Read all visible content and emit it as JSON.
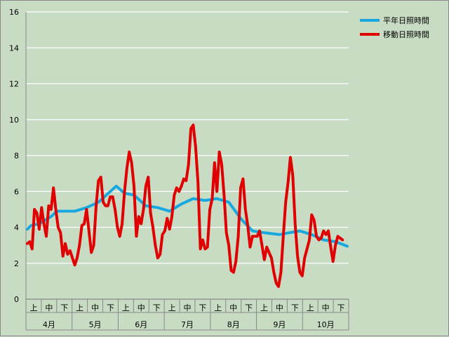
{
  "chart_data": {
    "type": "line",
    "title": "",
    "xlabel": "",
    "ylabel": "",
    "ylim": [
      0,
      16
    ],
    "yticks": [
      0,
      2,
      4,
      6,
      8,
      10,
      12,
      14,
      16
    ],
    "grid": true,
    "legend_position": "top-right",
    "months": [
      "4月",
      "5月",
      "6月",
      "7月",
      "8月",
      "9月",
      "10月"
    ],
    "periods": [
      "上",
      "中",
      "下"
    ],
    "x_count": 214,
    "series": [
      {
        "name": "平年日照時間",
        "color": "#18a8e0",
        "keypoints": [
          [
            0,
            3.9
          ],
          [
            3,
            4.1
          ],
          [
            10,
            4.2
          ],
          [
            20,
            4.6
          ],
          [
            25,
            4.9
          ],
          [
            40,
            4.9
          ],
          [
            50,
            5.1
          ],
          [
            60,
            5.4
          ],
          [
            70,
            6.0
          ],
          [
            75,
            6.3
          ],
          [
            82,
            5.9
          ],
          [
            90,
            5.8
          ],
          [
            100,
            5.2
          ],
          [
            110,
            5.1
          ],
          [
            120,
            4.9
          ],
          [
            130,
            5.3
          ],
          [
            140,
            5.6
          ],
          [
            150,
            5.5
          ],
          [
            160,
            5.6
          ],
          [
            170,
            5.4
          ],
          [
            180,
            4.5
          ],
          [
            190,
            3.8
          ],
          [
            200,
            3.7
          ],
          [
            213,
            3.6
          ],
          [
            221,
            3.7
          ],
          [
            230,
            3.8
          ],
          [
            240,
            3.6
          ],
          [
            250,
            3.3
          ],
          [
            260,
            3.2
          ],
          [
            270,
            2.95
          ]
        ]
      },
      {
        "name": "移動日照時間",
        "color": "#e00000",
        "keypoints": [
          [
            0,
            3.1
          ],
          [
            2,
            3.2
          ],
          [
            4,
            2.8
          ],
          [
            6,
            5.0
          ],
          [
            8,
            4.8
          ],
          [
            10,
            3.9
          ],
          [
            12,
            5.1
          ],
          [
            14,
            4.2
          ],
          [
            16,
            3.5
          ],
          [
            18,
            5.2
          ],
          [
            20,
            5.0
          ],
          [
            22,
            6.2
          ],
          [
            24,
            5.0
          ],
          [
            26,
            4.0
          ],
          [
            28,
            3.7
          ],
          [
            30,
            2.4
          ],
          [
            32,
            3.1
          ],
          [
            34,
            2.5
          ],
          [
            36,
            2.7
          ],
          [
            38,
            2.3
          ],
          [
            40,
            1.9
          ],
          [
            42,
            2.3
          ],
          [
            44,
            3.0
          ],
          [
            46,
            4.1
          ],
          [
            48,
            4.2
          ],
          [
            50,
            5.0
          ],
          [
            52,
            3.8
          ],
          [
            54,
            2.6
          ],
          [
            56,
            3.0
          ],
          [
            58,
            5.2
          ],
          [
            60,
            6.6
          ],
          [
            62,
            6.8
          ],
          [
            64,
            5.4
          ],
          [
            66,
            5.2
          ],
          [
            68,
            5.2
          ],
          [
            70,
            5.7
          ],
          [
            72,
            5.7
          ],
          [
            74,
            5.0
          ],
          [
            76,
            4.0
          ],
          [
            78,
            3.5
          ],
          [
            80,
            4.2
          ],
          [
            82,
            6.0
          ],
          [
            84,
            7.3
          ],
          [
            86,
            8.2
          ],
          [
            88,
            7.6
          ],
          [
            90,
            6.3
          ],
          [
            92,
            3.5
          ],
          [
            94,
            4.6
          ],
          [
            96,
            4.2
          ],
          [
            98,
            5.0
          ],
          [
            100,
            6.3
          ],
          [
            102,
            6.8
          ],
          [
            104,
            4.8
          ],
          [
            106,
            4.0
          ],
          [
            108,
            3.0
          ],
          [
            110,
            2.3
          ],
          [
            112,
            2.5
          ],
          [
            114,
            3.6
          ],
          [
            116,
            3.8
          ],
          [
            118,
            4.5
          ],
          [
            120,
            3.9
          ],
          [
            122,
            4.6
          ],
          [
            124,
            5.8
          ],
          [
            126,
            6.2
          ],
          [
            128,
            6.0
          ],
          [
            130,
            6.3
          ],
          [
            132,
            6.7
          ],
          [
            134,
            6.6
          ],
          [
            136,
            7.5
          ],
          [
            138,
            9.5
          ],
          [
            140,
            9.7
          ],
          [
            142,
            8.5
          ],
          [
            144,
            6.5
          ],
          [
            146,
            2.8
          ],
          [
            148,
            3.3
          ],
          [
            150,
            2.8
          ],
          [
            152,
            2.9
          ],
          [
            154,
            5.0
          ],
          [
            156,
            5.6
          ],
          [
            158,
            7.6
          ],
          [
            160,
            6.0
          ],
          [
            162,
            8.2
          ],
          [
            164,
            7.5
          ],
          [
            166,
            5.8
          ],
          [
            168,
            3.7
          ],
          [
            170,
            3.0
          ],
          [
            172,
            1.6
          ],
          [
            174,
            1.5
          ],
          [
            176,
            2.1
          ],
          [
            178,
            3.5
          ],
          [
            180,
            6.2
          ],
          [
            182,
            6.7
          ],
          [
            184,
            5.0
          ],
          [
            186,
            4.1
          ],
          [
            188,
            2.9
          ],
          [
            190,
            3.5
          ],
          [
            192,
            3.5
          ],
          [
            194,
            3.5
          ],
          [
            196,
            3.8
          ],
          [
            198,
            3.0
          ],
          [
            200,
            2.2
          ],
          [
            202,
            2.9
          ],
          [
            204,
            2.6
          ],
          [
            206,
            2.3
          ],
          [
            208,
            1.5
          ],
          [
            210,
            0.9
          ],
          [
            212,
            0.7
          ],
          [
            214,
            1.5
          ],
          [
            216,
            3.5
          ],
          [
            218,
            5.4
          ],
          [
            220,
            6.5
          ],
          [
            222,
            7.9
          ],
          [
            224,
            6.9
          ],
          [
            226,
            4.2
          ],
          [
            228,
            2.4
          ],
          [
            230,
            1.5
          ],
          [
            232,
            1.3
          ],
          [
            234,
            2.3
          ],
          [
            236,
            2.8
          ],
          [
            238,
            3.3
          ],
          [
            240,
            4.7
          ],
          [
            242,
            4.4
          ],
          [
            244,
            3.5
          ],
          [
            246,
            3.3
          ],
          [
            248,
            3.4
          ],
          [
            250,
            3.8
          ],
          [
            252,
            3.6
          ],
          [
            254,
            3.8
          ],
          [
            256,
            2.9
          ],
          [
            258,
            2.1
          ],
          [
            260,
            3.0
          ],
          [
            262,
            3.5
          ],
          [
            264,
            3.4
          ],
          [
            266,
            3.3
          ]
        ]
      }
    ]
  }
}
